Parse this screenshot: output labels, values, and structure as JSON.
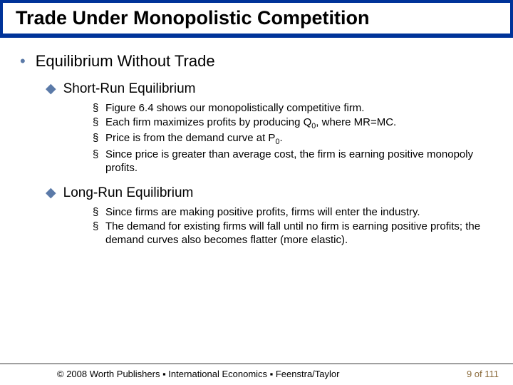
{
  "title": "Trade Under Monopolistic Competition",
  "colors": {
    "title_bar_bg": "#003399",
    "bullet_accent": "#5b7aa8",
    "page_number": "#8a6a3a",
    "divider": "#a0a0a0"
  },
  "content": {
    "heading": "Equilibrium Without Trade",
    "sections": [
      {
        "title": "Short-Run Equilibrium",
        "items": [
          "Figure 6.4 shows our monopolistically competitive firm.",
          "Each firm maximizes profits by producing Q<sub>0</sub>, where MR=MC.",
          "Price is from the demand curve at P<sub>0</sub>.",
          "Since price is greater than average cost, the firm is earning positive monopoly profits."
        ]
      },
      {
        "title": "Long-Run Equilibrium",
        "items": [
          "Since firms are making positive profits, firms will enter the industry.",
          "The demand for existing firms will fall until no firm is earning positive profits; the demand curves also becomes flatter (more elastic)."
        ]
      }
    ]
  },
  "footer": {
    "copyright": "© 2008 Worth Publishers ▪ International Economics ▪ Feenstra/Taylor",
    "page": "9 of 111"
  }
}
